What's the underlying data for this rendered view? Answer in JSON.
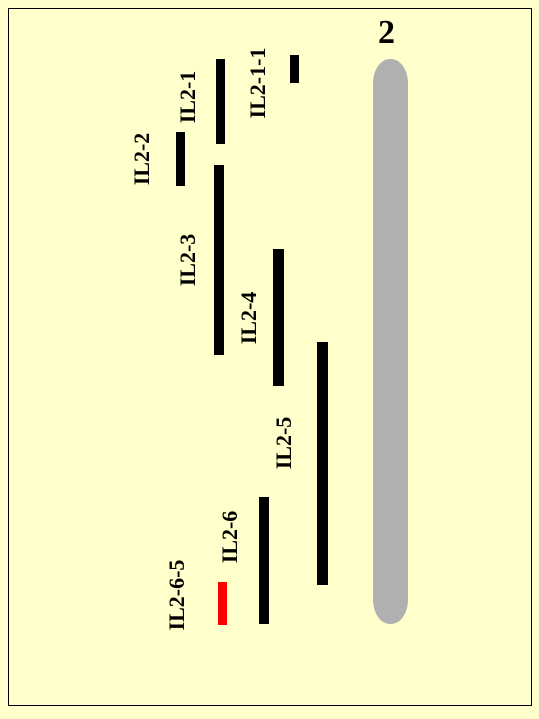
{
  "chromosome": {
    "label": "2",
    "color": "#B0B0B0"
  },
  "colors": {
    "background": "#FFFFCC",
    "segment": "#000000",
    "highlight": "#FF0000"
  },
  "segments": [
    {
      "label": "IL2-1-1"
    },
    {
      "label": "IL2-1"
    },
    {
      "label": "IL2-2"
    },
    {
      "label": "IL2-3"
    },
    {
      "label": "IL2-4"
    },
    {
      "label": "IL2-5"
    },
    {
      "label": "IL2-6"
    },
    {
      "label": "IL2-6-5"
    }
  ]
}
